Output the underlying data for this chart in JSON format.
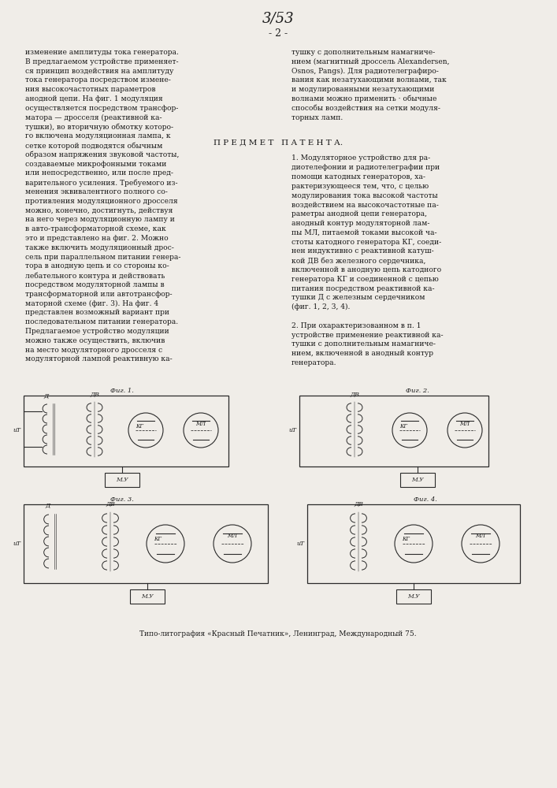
{
  "background_color": "#f0ede8",
  "page_number": "3/53",
  "page_sub": "- 2 -",
  "left_col_text": [
    "изменение амплитуды тока генератора.",
    "В предлагаемом устройстве применяет-",
    "ся принцип воздействия на амплитуду",
    "тока генератора посредством измене-",
    "ния высокочастотных параметров",
    "анодной цепи. На фиг. 1 модуляция",
    "осуществляется посредством трансфор-",
    "матора — дросселя (реактивной ка-",
    "тушки), во вторичную обмотку которо-",
    "го включена модуляционная лампа, к",
    "сетке которой подводятся обычным",
    "образом напряжения звуковой частоты,",
    "создаваемые микрофонными токами",
    "или непосредственно, или после пред-",
    "варительного усиления. Требуемого из-",
    "менения эквивалентного полного со-",
    "противления модуляционного дросселя",
    "можно, конечно, достигнуть, действуя",
    "на него через модуляционную лампу и",
    "в авто-трансформаторной схеме, как",
    "это и представлено на фиг. 2. Можно",
    "также включить модуляционный дрос-",
    "сель при параллельном питании генера-",
    "тора в анодную цепь и со стороны ко-",
    "лебательного контура и действовать",
    "посредством модуляторной лампы в",
    "трансформаторной или автотрансфор-",
    "маторной схеме (фиг. 3). На фиг. 4",
    "представлен возможный вариант при",
    "последовательном питании генератора.",
    "Предлагаемое устройство модуляции",
    "можно также осуществить, включив",
    "на место модуляторного дросселя с",
    "модуляторной лампой реактивную ка-"
  ],
  "right_col_text": [
    "тушку с дополнительным намагниче-",
    "нием (магнитный дроссель Alexandersen,",
    "Osnos, Pangs). Для радиотелеграфиро-",
    "вания как незатухающими волнами, так",
    "и модулированными незатухающими",
    "волнами можно применить · обычные",
    "способы воздействия на сетки модуля-",
    "торных ламп."
  ],
  "predmet_title": "П Р Е Д М Е Т   П А Т Е Н Т А.",
  "predmet_text": [
    "1. Модуляторное устройство для ра-",
    "диотелефонии и радиотелеграфии при",
    "помощи катодных генераторов, ха-",
    "рактеризующееся тем, что, с целью",
    "модулирования тока высокой частоты",
    "воздействием на высокочастотные па-",
    "раметры анодной цепи генератора,",
    "анодный контур модуляторной лам-",
    "пы МЛ, питаемой токами высокой ча-",
    "стоты катодного генератора КГ, соеди-",
    "нен индуктивно с реактивной катуш-",
    "кой ДВ без железного сердечника,",
    "включенной в анодную цепь катодного",
    "генератора КГ и соединенной с цепью",
    "питания посредством реактивной ка-",
    "тушки Д с железным сердечником",
    "(фиг. 1, 2, 3, 4).",
    "",
    "2. При охарактеризованном в п. 1",
    "устройстве применение реактивной ка-",
    "тушки с дополнительным намагниче-",
    "нием, включенной в анодный контур",
    "генератора."
  ],
  "fig_labels": [
    "Фиг. 1.",
    "Фиг. 2.",
    "Фиг. 3.",
    "Фиг. 4."
  ],
  "footer_text": "Типо-литография «Красный Печатник», Ленинград, Международный 75.",
  "text_color": "#1a1a1a",
  "line_color": "#2a2a2a"
}
